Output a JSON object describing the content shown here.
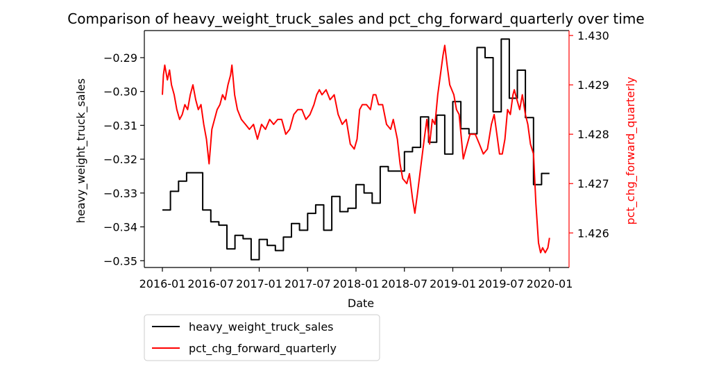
{
  "chart_data": {
    "type": "line",
    "title": "Comparison of heavy_weight_truck_sales and pct_chg_forward_quarterly over time",
    "xlabel": "Date",
    "ylabel_left": "heavy_weight_truck_sales",
    "ylabel_right": "pct_chg_forward_quarterly",
    "x_ticks": [
      "2016-01",
      "2016-07",
      "2017-01",
      "2017-07",
      "2018-01",
      "2018-07",
      "2019-01",
      "2019-07",
      "2020-01"
    ],
    "y_left_ticks": [
      "-0.35",
      "-0.34",
      "-0.33",
      "-0.32",
      "-0.31",
      "-0.30",
      "-0.29"
    ],
    "y_right_ticks": [
      "1.426",
      "1.427",
      "1.428",
      "1.429",
      "1.430"
    ],
    "x_range": [
      "2016-01",
      "2020-01"
    ],
    "y_left_range": [
      -0.352,
      -0.282
    ],
    "y_right_range": [
      1.4253,
      1.4301
    ],
    "legend_position": "below",
    "colors": {
      "heavy_weight_truck_sales": "#000000",
      "pct_chg_forward_quarterly": "#ff0000"
    },
    "series": [
      {
        "name": "heavy_weight_truck_sales",
        "axis": "left",
        "style": "step",
        "points": [
          [
            "2016-01",
            -0.335
          ],
          [
            "2016-02",
            -0.3295
          ],
          [
            "2016-03",
            -0.3265
          ],
          [
            "2016-04",
            -0.324
          ],
          [
            "2016-06",
            -0.335
          ],
          [
            "2016-07",
            -0.3385
          ],
          [
            "2016-08",
            -0.3395
          ],
          [
            "2016-09",
            -0.3465
          ],
          [
            "2016-10",
            -0.3425
          ],
          [
            "2016-11",
            -0.3435
          ],
          [
            "2016-12",
            -0.3497
          ],
          [
            "2017-01",
            -0.3437
          ],
          [
            "2017-02",
            -0.3455
          ],
          [
            "2017-03",
            -0.347
          ],
          [
            "2017-04",
            -0.343
          ],
          [
            "2017-05",
            -0.339
          ],
          [
            "2017-06",
            -0.341
          ],
          [
            "2017-07",
            -0.336
          ],
          [
            "2017-08",
            -0.3335
          ],
          [
            "2017-09",
            -0.341
          ],
          [
            "2017-10",
            -0.331
          ],
          [
            "2017-11",
            -0.3355
          ],
          [
            "2017-12",
            -0.3345
          ],
          [
            "2018-01",
            -0.3275
          ],
          [
            "2018-02",
            -0.33
          ],
          [
            "2018-03",
            -0.333
          ],
          [
            "2018-04",
            -0.3222
          ],
          [
            "2018-05",
            -0.3235
          ],
          [
            "2018-06",
            -0.3235
          ],
          [
            "2018-07",
            -0.3178
          ],
          [
            "2018-08",
            -0.3165
          ],
          [
            "2018-09",
            -0.3075
          ],
          [
            "2018-10",
            -0.315
          ],
          [
            "2018-11",
            -0.307
          ],
          [
            "2018-12",
            -0.3185
          ],
          [
            "2019-01",
            -0.303
          ],
          [
            "2019-02",
            -0.311
          ],
          [
            "2019-03",
            -0.3125
          ],
          [
            "2019-04",
            -0.287
          ],
          [
            "2019-05",
            -0.29
          ],
          [
            "2019-06",
            -0.306
          ],
          [
            "2019-07",
            -0.2845
          ],
          [
            "2019-08",
            -0.302
          ],
          [
            "2019-09",
            -0.2937
          ],
          [
            "2019-10",
            -0.3077
          ],
          [
            "2019-11",
            -0.3275
          ],
          [
            "2019-12",
            -0.3242
          ],
          [
            "2019-12-31",
            -0.3242
          ]
        ]
      },
      {
        "name": "pct_chg_forward_quarterly",
        "axis": "right",
        "style": "line",
        "points": [
          [
            "2016-01-01",
            1.4288
          ],
          [
            "2016-01-05",
            1.4292
          ],
          [
            "2016-01-10",
            1.4294
          ],
          [
            "2016-01-20",
            1.4291
          ],
          [
            "2016-01-28",
            1.4293
          ],
          [
            "2016-02-05",
            1.429
          ],
          [
            "2016-02-15",
            1.4288
          ],
          [
            "2016-02-25",
            1.4285
          ],
          [
            "2016-03-05",
            1.4283
          ],
          [
            "2016-03-15",
            1.4284
          ],
          [
            "2016-03-25",
            1.4286
          ],
          [
            "2016-04-05",
            1.4285
          ],
          [
            "2016-04-15",
            1.4288
          ],
          [
            "2016-04-25",
            1.429
          ],
          [
            "2016-05-05",
            1.4287
          ],
          [
            "2016-05-15",
            1.4285
          ],
          [
            "2016-05-25",
            1.4286
          ],
          [
            "2016-06-05",
            1.4282
          ],
          [
            "2016-06-15",
            1.4279
          ],
          [
            "2016-06-25",
            1.4274
          ],
          [
            "2016-07-05",
            1.4281
          ],
          [
            "2016-07-15",
            1.4283
          ],
          [
            "2016-07-25",
            1.4285
          ],
          [
            "2016-08-05",
            1.4286
          ],
          [
            "2016-08-15",
            1.4288
          ],
          [
            "2016-08-25",
            1.4287
          ],
          [
            "2016-09-05",
            1.429
          ],
          [
            "2016-09-15",
            1.4292
          ],
          [
            "2016-09-20",
            1.4294
          ],
          [
            "2016-09-30",
            1.4288
          ],
          [
            "2016-10-10",
            1.4285
          ],
          [
            "2016-10-25",
            1.4283
          ],
          [
            "2016-11-10",
            1.4282
          ],
          [
            "2016-11-25",
            1.4281
          ],
          [
            "2016-12-10",
            1.4282
          ],
          [
            "2016-12-25",
            1.4279
          ],
          [
            "2017-01-10",
            1.4282
          ],
          [
            "2017-01-25",
            1.4281
          ],
          [
            "2017-02-10",
            1.4283
          ],
          [
            "2017-02-25",
            1.4282
          ],
          [
            "2017-03-10",
            1.4283
          ],
          [
            "2017-03-25",
            1.4283
          ],
          [
            "2017-04-10",
            1.428
          ],
          [
            "2017-04-25",
            1.4281
          ],
          [
            "2017-05-10",
            1.4284
          ],
          [
            "2017-05-25",
            1.4285
          ],
          [
            "2017-06-10",
            1.4285
          ],
          [
            "2017-06-25",
            1.4283
          ],
          [
            "2017-07-10",
            1.4284
          ],
          [
            "2017-07-25",
            1.4286
          ],
          [
            "2017-08-05",
            1.4288
          ],
          [
            "2017-08-15",
            1.4289
          ],
          [
            "2017-08-25",
            1.4288
          ],
          [
            "2017-09-10",
            1.4289
          ],
          [
            "2017-09-25",
            1.4287
          ],
          [
            "2017-10-10",
            1.4288
          ],
          [
            "2017-10-25",
            1.4284
          ],
          [
            "2017-11-10",
            1.4282
          ],
          [
            "2017-11-25",
            1.4283
          ],
          [
            "2017-12-10",
            1.4278
          ],
          [
            "2017-12-25",
            1.4277
          ],
          [
            "2018-01-05",
            1.4279
          ],
          [
            "2018-01-15",
            1.4285
          ],
          [
            "2018-01-25",
            1.4286
          ],
          [
            "2018-02-10",
            1.4286
          ],
          [
            "2018-02-25",
            1.4285
          ],
          [
            "2018-03-05",
            1.4288
          ],
          [
            "2018-03-15",
            1.4288
          ],
          [
            "2018-03-25",
            1.4286
          ],
          [
            "2018-04-10",
            1.4286
          ],
          [
            "2018-04-25",
            1.4282
          ],
          [
            "2018-05-10",
            1.4281
          ],
          [
            "2018-05-20",
            1.4283
          ],
          [
            "2018-06-05",
            1.4279
          ],
          [
            "2018-06-15",
            1.4274
          ],
          [
            "2018-06-25",
            1.4271
          ],
          [
            "2018-07-10",
            1.427
          ],
          [
            "2018-07-20",
            1.4272
          ],
          [
            "2018-08-01",
            1.4267
          ],
          [
            "2018-08-10",
            1.4264
          ],
          [
            "2018-08-20",
            1.4268
          ],
          [
            "2018-09-01",
            1.4273
          ],
          [
            "2018-09-15",
            1.4279
          ],
          [
            "2018-09-25",
            1.4283
          ],
          [
            "2018-10-05",
            1.4278
          ],
          [
            "2018-10-15",
            1.4283
          ],
          [
            "2018-10-25",
            1.4282
          ],
          [
            "2018-11-05",
            1.4288
          ],
          [
            "2018-11-15",
            1.4292
          ],
          [
            "2018-11-25",
            1.4296
          ],
          [
            "2018-12-01",
            1.4298
          ],
          [
            "2018-12-10",
            1.4294
          ],
          [
            "2018-12-20",
            1.429
          ],
          [
            "2019-01-05",
            1.4288
          ],
          [
            "2019-01-15",
            1.4285
          ],
          [
            "2019-01-25",
            1.4284
          ],
          [
            "2019-02-10",
            1.4275
          ],
          [
            "2019-02-20",
            1.4277
          ],
          [
            "2019-03-05",
            1.428
          ],
          [
            "2019-03-15",
            1.428
          ],
          [
            "2019-03-25",
            1.428
          ],
          [
            "2019-04-10",
            1.4278
          ],
          [
            "2019-04-25",
            1.4276
          ],
          [
            "2019-05-10",
            1.4277
          ],
          [
            "2019-05-25",
            1.4282
          ],
          [
            "2019-06-05",
            1.4284
          ],
          [
            "2019-06-15",
            1.428
          ],
          [
            "2019-06-25",
            1.4276
          ],
          [
            "2019-07-05",
            1.4276
          ],
          [
            "2019-07-15",
            1.4279
          ],
          [
            "2019-07-25",
            1.4285
          ],
          [
            "2019-08-05",
            1.4284
          ],
          [
            "2019-08-15",
            1.4288
          ],
          [
            "2019-08-20",
            1.4289
          ],
          [
            "2019-08-30",
            1.4287
          ],
          [
            "2019-09-10",
            1.4285
          ],
          [
            "2019-09-20",
            1.4288
          ],
          [
            "2019-10-01",
            1.4284
          ],
          [
            "2019-10-10",
            1.4282
          ],
          [
            "2019-10-20",
            1.4278
          ],
          [
            "2019-11-01",
            1.4276
          ],
          [
            "2019-11-10",
            1.4266
          ],
          [
            "2019-11-20",
            1.4258
          ],
          [
            "2019-11-28",
            1.4256
          ],
          [
            "2019-12-05",
            1.4257
          ],
          [
            "2019-12-15",
            1.4256
          ],
          [
            "2019-12-25",
            1.4257
          ],
          [
            "2019-12-31",
            1.4259
          ]
        ]
      }
    ]
  }
}
